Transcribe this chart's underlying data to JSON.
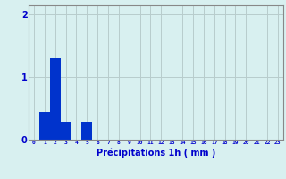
{
  "categories": [
    0,
    1,
    2,
    3,
    4,
    5,
    6,
    7,
    8,
    9,
    10,
    11,
    12,
    13,
    14,
    15,
    16,
    17,
    18,
    19,
    20,
    21,
    22,
    23
  ],
  "values": [
    0,
    0.45,
    1.3,
    0.28,
    0,
    0.28,
    0,
    0,
    0,
    0,
    0,
    0,
    0,
    0,
    0,
    0,
    0,
    0,
    0,
    0,
    0,
    0,
    0,
    0
  ],
  "bar_color": "#0033cc",
  "background_color": "#d8f0f0",
  "grid_color": "#b8cccc",
  "xlabel": "Précipitations 1h ( mm )",
  "xlabel_color": "#0000cc",
  "tick_color": "#0000cc",
  "axis_color": "#888888",
  "yticks": [
    0,
    1,
    2
  ],
  "ylim": [
    0,
    2.15
  ],
  "xlim": [
    -0.5,
    23.5
  ]
}
